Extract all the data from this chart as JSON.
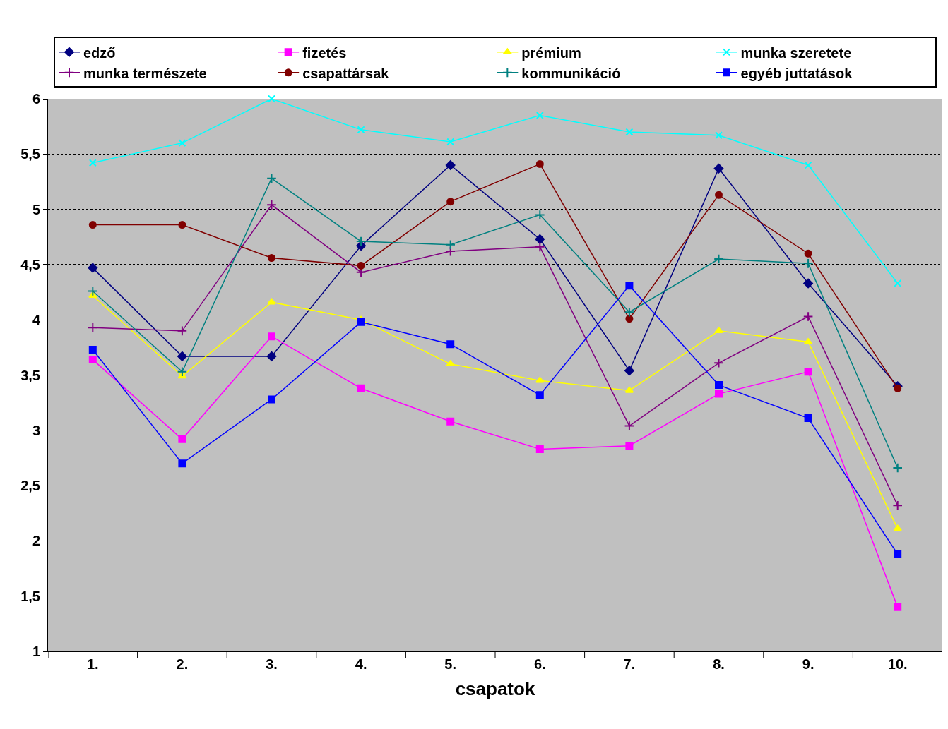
{
  "chart_data": {
    "type": "line",
    "xlabel": "csapatok",
    "categories": [
      "1.",
      "2.",
      "3.",
      "4.",
      "5.",
      "6.",
      "7.",
      "8.",
      "9.",
      "10."
    ],
    "ylim": [
      1,
      6
    ],
    "yticks": [
      1,
      {
        "value": 1.5,
        "label": "1,5"
      },
      2,
      {
        "value": 2.5,
        "label": "2,5"
      },
      3,
      {
        "value": 3.5,
        "label": "3,5"
      },
      4,
      {
        "value": 4.5,
        "label": "4,5"
      },
      5,
      {
        "value": 5.5,
        "label": "5,5"
      },
      6
    ],
    "grid": "y",
    "legend": "top",
    "line_style": "solid",
    "series": [
      {
        "name": "edző",
        "color": "#000080",
        "marker": "diamond",
        "values": [
          4.47,
          3.67,
          3.67,
          4.67,
          5.4,
          4.73,
          3.54,
          5.37,
          4.33,
          3.4
        ]
      },
      {
        "name": "fizetés",
        "color": "#ff00ff",
        "marker": "square",
        "values": [
          3.64,
          2.92,
          3.85,
          3.38,
          3.08,
          2.83,
          2.86,
          3.33,
          3.53,
          1.4
        ]
      },
      {
        "name": "prémium",
        "color": "#ffff00",
        "marker": "triangle",
        "values": [
          4.22,
          3.49,
          4.16,
          4.0,
          3.6,
          3.45,
          3.36,
          3.9,
          3.8,
          2.11
        ]
      },
      {
        "name": "munka szeretete",
        "color": "#00ffff",
        "marker": "x",
        "values": [
          5.42,
          5.6,
          6.0,
          5.72,
          5.61,
          5.85,
          5.7,
          5.67,
          5.4,
          4.33
        ]
      },
      {
        "name": "munka természete",
        "color": "#800080",
        "marker": "cross",
        "values": [
          3.93,
          3.9,
          5.04,
          4.43,
          4.62,
          4.66,
          3.04,
          3.61,
          4.03,
          2.32
        ]
      },
      {
        "name": "csapattársak",
        "color": "#800000",
        "marker": "circle",
        "values": [
          4.86,
          4.86,
          4.56,
          4.49,
          5.07,
          5.41,
          4.01,
          5.13,
          4.6,
          3.38
        ]
      },
      {
        "name": "kommunikáció",
        "color": "#008080",
        "marker": "cross",
        "values": [
          4.26,
          3.53,
          5.28,
          4.71,
          4.68,
          4.95,
          4.07,
          4.55,
          4.51,
          2.66
        ]
      },
      {
        "name": "egyéb juttatások",
        "color": "#0000ff",
        "marker": "square",
        "values": [
          3.73,
          2.7,
          3.28,
          3.98,
          3.78,
          3.32,
          4.31,
          3.41,
          3.11,
          1.88
        ]
      }
    ]
  }
}
